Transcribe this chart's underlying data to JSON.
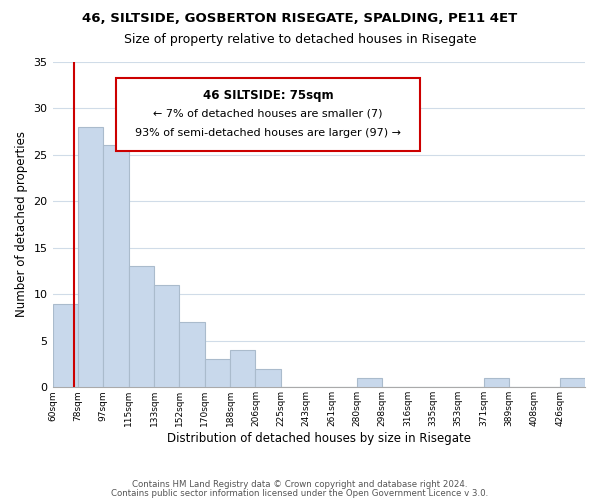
{
  "title1": "46, SILTSIDE, GOSBERTON RISEGATE, SPALDING, PE11 4ET",
  "title2": "Size of property relative to detached houses in Risegate",
  "xlabel": "Distribution of detached houses by size in Risegate",
  "ylabel": "Number of detached properties",
  "bar_values": [
    9,
    28,
    26,
    13,
    11,
    7,
    3,
    4,
    2,
    0,
    0,
    0,
    1,
    0,
    0,
    0,
    0,
    1,
    0,
    0,
    1
  ],
  "bar_labels": [
    "60sqm",
    "78sqm",
    "97sqm",
    "115sqm",
    "133sqm",
    "152sqm",
    "170sqm",
    "188sqm",
    "206sqm",
    "225sqm",
    "243sqm",
    "261sqm",
    "280sqm",
    "298sqm",
    "316sqm",
    "335sqm",
    "353sqm",
    "371sqm",
    "389sqm",
    "408sqm",
    "426sqm"
  ],
  "bar_color": "#c8d8eb",
  "bar_edge_color": "#aabbcc",
  "grid_color": "#d0dce8",
  "marker_color": "#cc0000",
  "annotation_line1": "46 SILTSIDE: 75sqm",
  "annotation_line2": "← 7% of detached houses are smaller (7)",
  "annotation_line3": "93% of semi-detached houses are larger (97) →",
  "annotation_box_edge": "#cc0000",
  "ylim": [
    0,
    35
  ],
  "yticks": [
    0,
    5,
    10,
    15,
    20,
    25,
    30,
    35
  ],
  "footer1": "Contains HM Land Registry data © Crown copyright and database right 2024.",
  "footer2": "Contains public sector information licensed under the Open Government Licence v 3.0."
}
